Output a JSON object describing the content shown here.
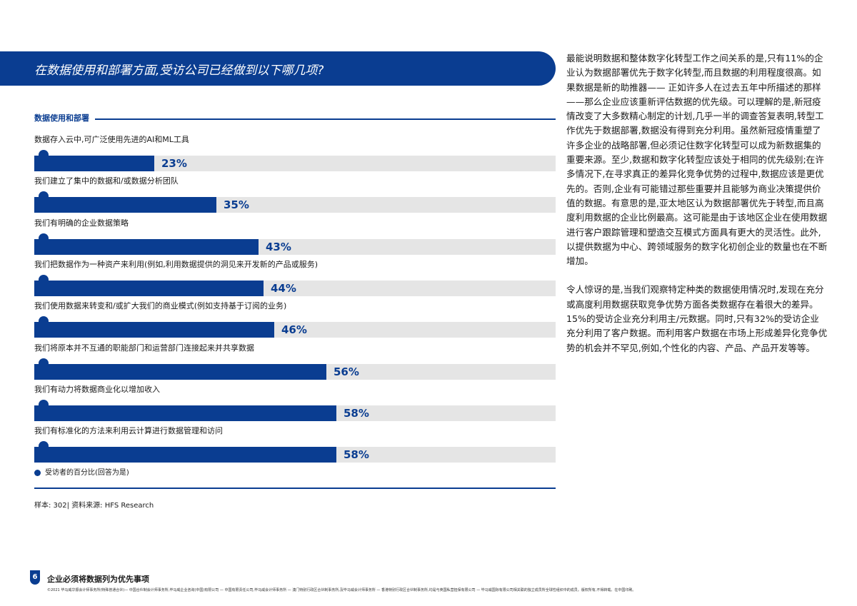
{
  "banner": {
    "title": "在数据使用和部署方面,受访公司已经做到以下哪几项?"
  },
  "section": {
    "title": "数据使用和部署"
  },
  "chart_data": {
    "type": "bar",
    "title": "数据使用和部署",
    "orientation": "horizontal",
    "xlim": [
      0,
      100
    ],
    "unit": "%",
    "categories": [
      "数据存入云中,可广泛使用先进的AI和ML工具",
      "我们建立了集中的数据和/或数据分析团队",
      "我们有明确的企业数据策略",
      "我们把数据作为一种资产来利用(例如,利用数据提供的洞见来开发新的产品或服务)",
      "我们使用数据来转变和/或扩大我们的商业模式(例如支持基于订阅的业务)",
      "我们将原本并不互通的职能部门和运营部门连接起来并共享数据",
      "我们有动力将数据商业化以增加收入",
      "我们有标准化的方法来利用云计算进行数据管理和访问"
    ],
    "values": [
      23,
      35,
      43,
      44,
      46,
      56,
      58,
      58
    ],
    "value_labels": [
      "23%",
      "35%",
      "43%",
      "44%",
      "46%",
      "56%",
      "58%",
      "58%"
    ],
    "legend": "受访者的百分比(回答为是)"
  },
  "source": "样本: 302| 资料来源: HFS Research",
  "body_text": [
    "最能说明数据和整体数字化转型工作之间关系的是,只有11%的企业认为数据部署优先于数字化转型,而且数据的利用程度很高。如果数据是新的助推器—— 正如许多人在过去五年中所描述的那样——那么企业应该重新评估数据的优先级。可以理解的是,新冠疫情改变了大多数精心制定的计划,几乎一半的调查答复表明,转型工作优先于数据部署,数据没有得到充分利用。虽然新冠疫情重塑了许多企业的战略部署,但必须记住数字化转型可以成为新数据集的重要来源。至少,数据和数字化转型应该处于相同的优先级别;在许多情况下,在寻求真正的差异化竞争优势的过程中,数据应该是更优先的。否则,企业有可能错过那些重要并且能够为商业决策提供价值的数据。有意思的是,亚太地区认为数据部署优先于转型,而且高度利用数据的企业比例最高。这可能是由于该地区企业在使用数据进行客户跟踪管理和塑造交互模式方面具有更大的灵活性。此外,以提供数据为中心、跨领域服务的数字化初创企业的数量也在不断增加。",
    "令人惊讶的是,当我们观察特定种类的数据使用情况时,发现在充分或高度利用数据获取竞争优势方面各类数据存在着很大的差异。15%的受访企业充分利用主/元数据。同时,只有32%的受访企业充分利用了客户数据。而利用客户数据在市场上形成差异化竞争优势的机会并不罕见,例如,个性化的内容、产品、产品开发等等。"
  ],
  "footer": {
    "page_number": "6",
    "title": "企业必须将数据列为优先事项",
    "legal": "©2021 毕马威华振会计师事务所(特殊普通合伙)— 中国合伙制会计师事务所,毕马威企业咨询(中国)有限公司 — 中国有限责任公司,毕马威会计师事务所 — 澳门特别行政区合伙制事务所,及毕马威会计师事务所 — 香港特别行政区合伙制事务所,均是与英国私营担保有限公司 — 毕马威国际有限公司相关联的独立成员所全球性组织中的成员。版权所有,不得转载。在中国印刷。"
  }
}
